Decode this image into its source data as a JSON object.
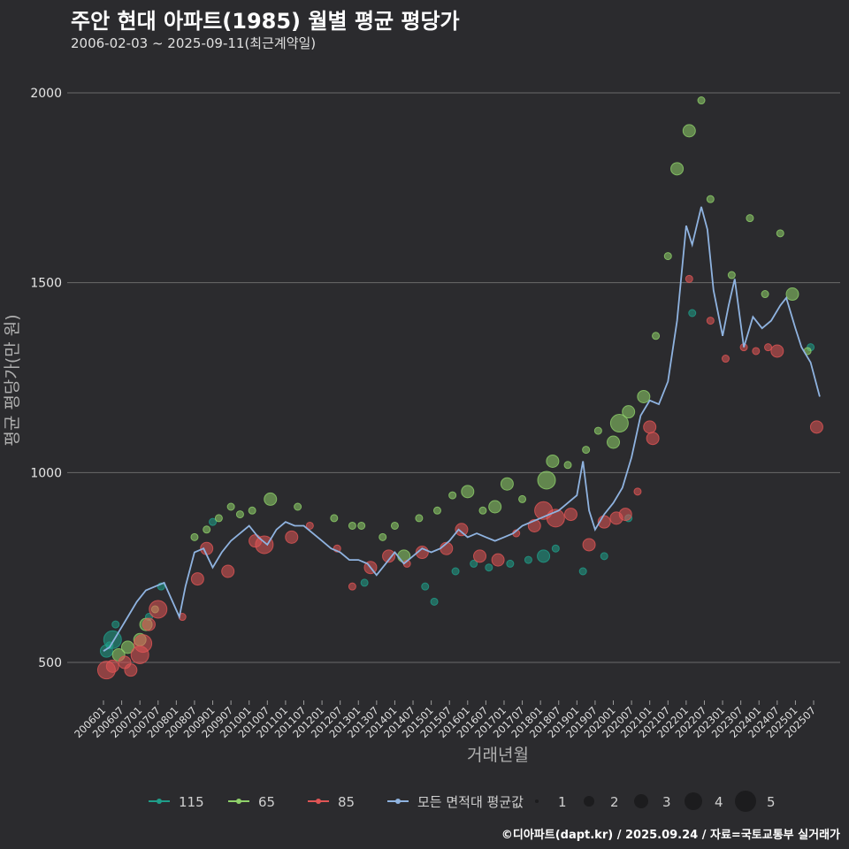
{
  "header": {
    "title": "주안 현대 아파트(1985) 월별 평균 평당가",
    "subtitle": "2006-02-03 ~ 2025-09-11(최근계약일)"
  },
  "footer": {
    "credit": "©디아파트(dapt.kr) / 2025.09.24 / 자료=국토교통부 실거래가"
  },
  "colors": {
    "background": "#2b2b2e",
    "grid": "#6a6a6a",
    "s115": "#1f9e89",
    "s65": "#8fd16a",
    "s85": "#e05555",
    "avg": "#8fb3e0"
  },
  "chart_data": {
    "type": "line",
    "xlabel": "거래년월",
    "ylabel": "평균 평당가(만 원)",
    "ylim": [
      400,
      2100
    ],
    "yticks": [
      500,
      1000,
      1500,
      2000
    ],
    "x_tick_labels": [
      "200601",
      "200607",
      "200701",
      "200707",
      "200801",
      "200807",
      "200901",
      "200907",
      "201001",
      "201007",
      "201101",
      "201107",
      "201201",
      "201207",
      "201301",
      "201307",
      "201401",
      "201407",
      "201501",
      "201507",
      "201601",
      "201607",
      "201701",
      "201707",
      "201801",
      "201807",
      "201901",
      "201907",
      "202001",
      "202007",
      "202101",
      "202107",
      "202201",
      "202207",
      "202301",
      "202307",
      "202401",
      "202407",
      "202501",
      "202507"
    ],
    "grid": true,
    "legend_position": "bottom",
    "legend": {
      "series": [
        {
          "key": "115",
          "label": "115"
        },
        {
          "key": "65",
          "label": "65"
        },
        {
          "key": "85",
          "label": "85"
        },
        {
          "key": "avg",
          "label": "모든 면적대 평균값"
        }
      ],
      "sizes": [
        "1",
        "2",
        "3",
        "4",
        "5"
      ]
    },
    "series": [
      {
        "name": "모든 면적대 평균값",
        "type": "line",
        "x": [
          "2006-01",
          "2006-03",
          "2006-06",
          "2006-09",
          "2006-12",
          "2007-03",
          "2007-06",
          "2007-09",
          "2008-02",
          "2008-04",
          "2008-07",
          "2008-10",
          "2009-01",
          "2009-04",
          "2009-07",
          "2009-10",
          "2010-01",
          "2010-04",
          "2010-07",
          "2010-10",
          "2011-01",
          "2011-04",
          "2011-07",
          "2011-10",
          "2012-01",
          "2012-04",
          "2012-07",
          "2012-10",
          "2013-01",
          "2013-04",
          "2013-07",
          "2013-10",
          "2014-01",
          "2014-04",
          "2014-07",
          "2014-10",
          "2015-01",
          "2015-04",
          "2015-07",
          "2015-10",
          "2016-01",
          "2016-04",
          "2016-07",
          "2016-10",
          "2017-01",
          "2017-04",
          "2017-07",
          "2017-10",
          "2018-01",
          "2018-04",
          "2018-07",
          "2018-10",
          "2019-01",
          "2019-03",
          "2019-05",
          "2019-07",
          "2019-10",
          "2020-01",
          "2020-04",
          "2020-07",
          "2020-10",
          "2021-01",
          "2021-04",
          "2021-07",
          "2021-10",
          "2022-01",
          "2022-03",
          "2022-06",
          "2022-08",
          "2022-10",
          "2023-01",
          "2023-03",
          "2023-05",
          "2023-08",
          "2023-11",
          "2024-02",
          "2024-05",
          "2024-08",
          "2024-10",
          "2025-01",
          "2025-03",
          "2025-06",
          "2025-09"
        ],
        "values": [
          530,
          540,
          580,
          620,
          660,
          690,
          700,
          710,
          620,
          700,
          790,
          800,
          750,
          790,
          820,
          840,
          860,
          830,
          810,
          850,
          870,
          860,
          860,
          840,
          820,
          800,
          790,
          770,
          770,
          760,
          730,
          760,
          790,
          760,
          780,
          800,
          790,
          800,
          820,
          850,
          830,
          840,
          830,
          820,
          830,
          840,
          860,
          870,
          880,
          890,
          900,
          920,
          940,
          1030,
          900,
          850,
          890,
          920,
          960,
          1040,
          1150,
          1190,
          1180,
          1240,
          1400,
          1650,
          1600,
          1700,
          1640,
          1480,
          1360,
          1440,
          1510,
          1330,
          1410,
          1380,
          1400,
          1440,
          1460,
          1380,
          1330,
          1290,
          1200
        ]
      },
      {
        "name": "115",
        "type": "scatter",
        "points": [
          [
            "2006-02",
            530,
            2
          ],
          [
            "2006-03",
            545,
            1
          ],
          [
            "2006-04",
            560,
            3
          ],
          [
            "2006-05",
            600,
            1
          ],
          [
            "2007-04",
            620,
            1
          ],
          [
            "2007-08",
            700,
            1
          ],
          [
            "2009-01",
            870,
            1
          ],
          [
            "2013-03",
            710,
            1
          ],
          [
            "2014-11",
            700,
            1
          ],
          [
            "2015-02",
            660,
            1
          ],
          [
            "2015-09",
            740,
            1
          ],
          [
            "2016-03",
            760,
            1
          ],
          [
            "2016-08",
            750,
            1
          ],
          [
            "2017-03",
            760,
            1
          ],
          [
            "2017-09",
            770,
            1
          ],
          [
            "2018-02",
            780,
            2
          ],
          [
            "2018-06",
            800,
            1
          ],
          [
            "2019-03",
            740,
            1
          ],
          [
            "2019-10",
            780,
            1
          ],
          [
            "2020-06",
            880,
            1
          ],
          [
            "2022-03",
            1420,
            1
          ],
          [
            "2025-06",
            1330,
            1
          ]
        ]
      },
      {
        "name": "65",
        "type": "scatter",
        "points": [
          [
            "2006-06",
            520,
            2
          ],
          [
            "2006-09",
            540,
            2
          ],
          [
            "2007-01",
            560,
            2
          ],
          [
            "2007-03",
            600,
            2
          ],
          [
            "2007-06",
            640,
            1
          ],
          [
            "2008-07",
            830,
            1
          ],
          [
            "2008-11",
            850,
            1
          ],
          [
            "2009-03",
            880,
            1
          ],
          [
            "2009-07",
            910,
            1
          ],
          [
            "2009-10",
            890,
            1
          ],
          [
            "2010-02",
            900,
            1
          ],
          [
            "2010-08",
            930,
            2
          ],
          [
            "2011-05",
            910,
            1
          ],
          [
            "2012-05",
            880,
            1
          ],
          [
            "2012-11",
            860,
            1
          ],
          [
            "2013-02",
            860,
            1
          ],
          [
            "2013-09",
            830,
            1
          ],
          [
            "2014-01",
            860,
            1
          ],
          [
            "2014-04",
            780,
            2
          ],
          [
            "2014-09",
            880,
            1
          ],
          [
            "2015-03",
            900,
            1
          ],
          [
            "2015-08",
            940,
            1
          ],
          [
            "2016-01",
            950,
            2
          ],
          [
            "2016-06",
            900,
            1
          ],
          [
            "2016-10",
            910,
            2
          ],
          [
            "2017-02",
            970,
            2
          ],
          [
            "2017-07",
            930,
            1
          ],
          [
            "2018-03",
            980,
            3
          ],
          [
            "2018-05",
            1030,
            2
          ],
          [
            "2018-10",
            1020,
            1
          ],
          [
            "2019-04",
            1060,
            1
          ],
          [
            "2019-08",
            1110,
            1
          ],
          [
            "2020-01",
            1080,
            2
          ],
          [
            "2020-03",
            1130,
            3
          ],
          [
            "2020-06",
            1160,
            2
          ],
          [
            "2020-11",
            1200,
            2
          ],
          [
            "2021-03",
            1360,
            1
          ],
          [
            "2021-07",
            1570,
            1
          ],
          [
            "2021-10",
            1800,
            2
          ],
          [
            "2022-02",
            1900,
            2
          ],
          [
            "2022-06",
            1980,
            1
          ],
          [
            "2022-09",
            1720,
            1
          ],
          [
            "2023-04",
            1520,
            1
          ],
          [
            "2023-10",
            1670,
            1
          ],
          [
            "2024-03",
            1470,
            1
          ],
          [
            "2024-08",
            1630,
            1
          ],
          [
            "2024-12",
            1470,
            2
          ],
          [
            "2025-05",
            1320,
            1
          ]
        ]
      },
      {
        "name": "85",
        "type": "scatter",
        "points": [
          [
            "2006-02",
            480,
            3
          ],
          [
            "2006-04",
            490,
            2
          ],
          [
            "2006-08",
            500,
            2
          ],
          [
            "2006-10",
            480,
            2
          ],
          [
            "2007-01",
            520,
            3
          ],
          [
            "2007-02",
            550,
            3
          ],
          [
            "2007-04",
            600,
            2
          ],
          [
            "2007-07",
            640,
            3
          ],
          [
            "2008-03",
            620,
            1
          ],
          [
            "2008-08",
            720,
            2
          ],
          [
            "2008-11",
            800,
            2
          ],
          [
            "2009-06",
            740,
            2
          ],
          [
            "2010-03",
            820,
            2
          ],
          [
            "2010-06",
            810,
            3
          ],
          [
            "2011-03",
            830,
            2
          ],
          [
            "2011-09",
            860,
            1
          ],
          [
            "2012-06",
            800,
            1
          ],
          [
            "2012-11",
            700,
            1
          ],
          [
            "2013-05",
            750,
            2
          ],
          [
            "2013-11",
            780,
            2
          ],
          [
            "2014-05",
            760,
            1
          ],
          [
            "2014-10",
            790,
            2
          ],
          [
            "2015-06",
            800,
            2
          ],
          [
            "2015-11",
            850,
            2
          ],
          [
            "2016-05",
            780,
            2
          ],
          [
            "2016-11",
            770,
            2
          ],
          [
            "2017-05",
            840,
            1
          ],
          [
            "2017-11",
            860,
            2
          ],
          [
            "2018-02",
            900,
            3
          ],
          [
            "2018-06",
            880,
            3
          ],
          [
            "2018-11",
            890,
            2
          ],
          [
            "2019-05",
            810,
            2
          ],
          [
            "2019-10",
            870,
            2
          ],
          [
            "2020-02",
            880,
            2
          ],
          [
            "2020-05",
            890,
            2
          ],
          [
            "2020-09",
            950,
            1
          ],
          [
            "2021-01",
            1120,
            2
          ],
          [
            "2021-02",
            1090,
            2
          ],
          [
            "2022-02",
            1510,
            1
          ],
          [
            "2022-09",
            1400,
            1
          ],
          [
            "2023-02",
            1300,
            1
          ],
          [
            "2023-08",
            1330,
            1
          ],
          [
            "2023-12",
            1320,
            1
          ],
          [
            "2024-04",
            1330,
            1
          ],
          [
            "2024-07",
            1320,
            2
          ],
          [
            "2025-08",
            1120,
            2
          ]
        ]
      }
    ]
  }
}
